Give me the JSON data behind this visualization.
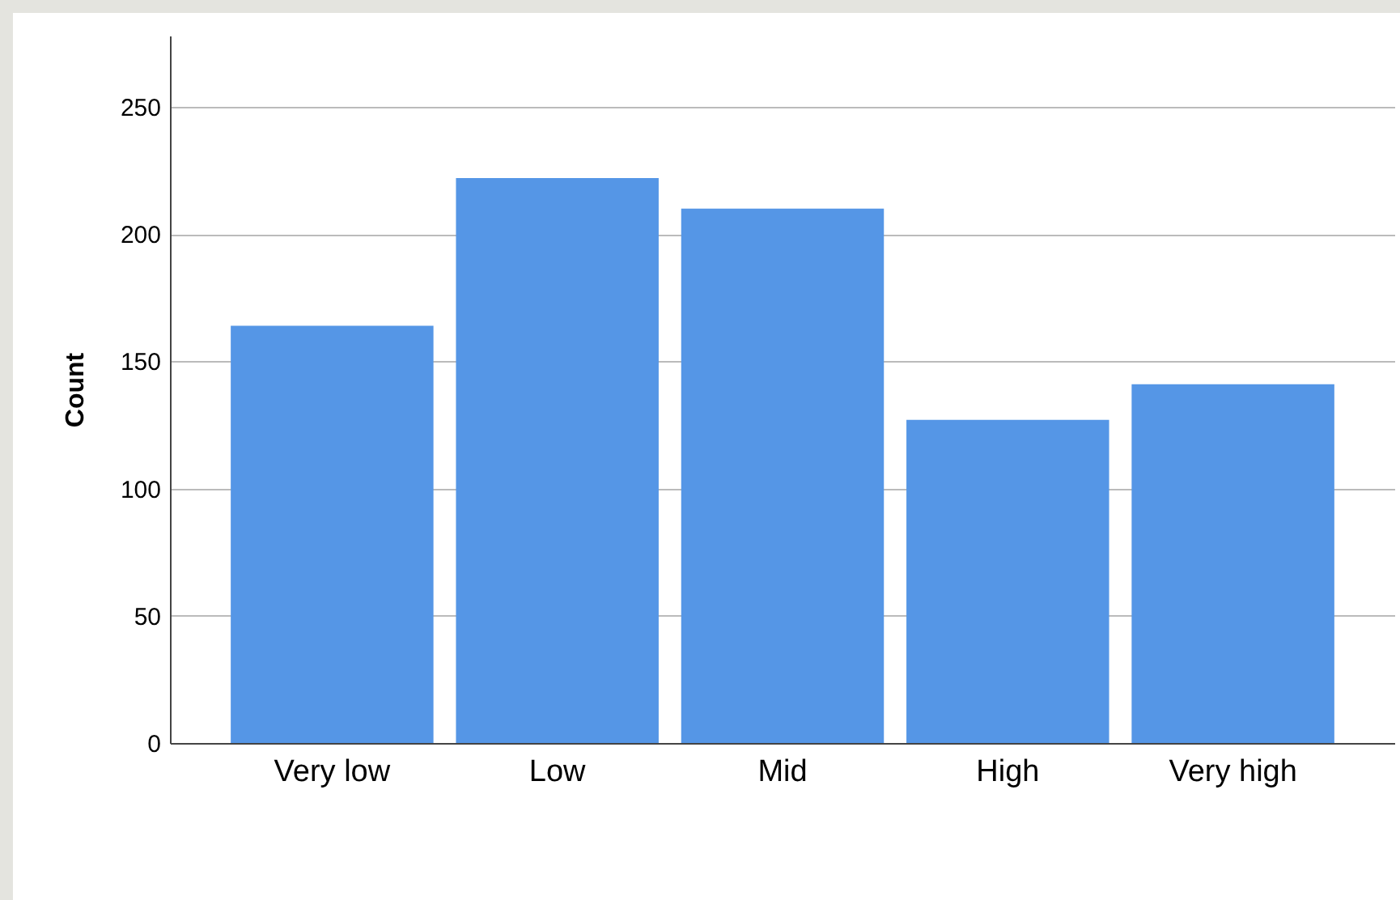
{
  "chart_data": {
    "type": "bar",
    "ylabel": "Count",
    "categories": [
      "Very low",
      "Low",
      "Mid",
      "High",
      "Very high"
    ],
    "values": [
      164,
      222,
      210,
      127,
      141
    ],
    "color": "#5596e6",
    "ylim": [
      0,
      278
    ],
    "yticks": [
      0,
      50,
      100,
      150,
      200,
      250
    ],
    "grid": "y"
  }
}
